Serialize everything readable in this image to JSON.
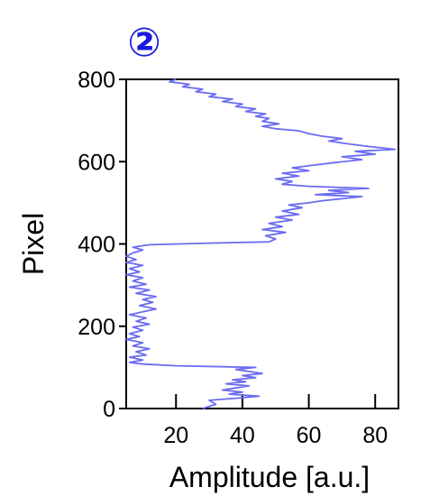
{
  "panel_badge": {
    "label": "②",
    "color": "#1a1adf"
  },
  "chart_data": {
    "type": "line",
    "title": "",
    "xlabel": "Amplitude [a.u.]",
    "ylabel": "Pixel",
    "xlim": [
      5,
      87
    ],
    "ylim": [
      0,
      800
    ],
    "x_ticks": [
      20,
      40,
      60,
      80
    ],
    "x_tick_labels": [
      "20",
      "40",
      "60",
      "80"
    ],
    "y_ticks": [
      0,
      200,
      400,
      600,
      800
    ],
    "y_tick_labels": [
      "0",
      "200",
      "400",
      "600",
      "800"
    ],
    "grid": false,
    "legend": "none",
    "series_color": "#6b6bf0",
    "series": [
      {
        "points": [
          [
            28,
            0
          ],
          [
            32,
            10
          ],
          [
            30,
            20
          ],
          [
            38,
            25
          ],
          [
            45,
            30
          ],
          [
            36,
            35
          ],
          [
            40,
            40
          ],
          [
            34,
            45
          ],
          [
            38,
            50
          ],
          [
            42,
            55
          ],
          [
            35,
            60
          ],
          [
            41,
            65
          ],
          [
            37,
            70
          ],
          [
            44,
            75
          ],
          [
            40,
            80
          ],
          [
            46,
            85
          ],
          [
            42,
            90
          ],
          [
            38,
            95
          ],
          [
            44,
            100
          ],
          [
            20,
            104
          ],
          [
            10,
            108
          ],
          [
            6,
            112
          ],
          [
            10,
            118
          ],
          [
            6,
            125
          ],
          [
            11,
            130
          ],
          [
            8,
            138
          ],
          [
            12,
            145
          ],
          [
            7,
            152
          ],
          [
            10,
            160
          ],
          [
            5,
            168
          ],
          [
            9,
            175
          ],
          [
            6,
            182
          ],
          [
            10,
            190
          ],
          [
            7,
            198
          ],
          [
            12,
            205
          ],
          [
            8,
            212
          ],
          [
            11,
            220
          ],
          [
            6,
            228
          ],
          [
            10,
            235
          ],
          [
            14,
            242
          ],
          [
            9,
            250
          ],
          [
            13,
            258
          ],
          [
            10,
            265
          ],
          [
            14,
            272
          ],
          [
            8,
            280
          ],
          [
            12,
            288
          ],
          [
            6,
            295
          ],
          [
            11,
            302
          ],
          [
            7,
            310
          ],
          [
            10,
            318
          ],
          [
            5,
            325
          ],
          [
            9,
            332
          ],
          [
            6,
            340
          ],
          [
            10,
            348
          ],
          [
            5,
            355
          ],
          [
            8,
            362
          ],
          [
            5,
            370
          ],
          [
            7,
            378
          ],
          [
            10,
            385
          ],
          [
            7,
            392
          ],
          [
            12,
            398
          ],
          [
            30,
            402
          ],
          [
            48,
            405
          ],
          [
            50,
            412
          ],
          [
            47,
            420
          ],
          [
            53,
            428
          ],
          [
            46,
            435
          ],
          [
            52,
            442
          ],
          [
            48,
            450
          ],
          [
            55,
            458
          ],
          [
            50,
            465
          ],
          [
            57,
            472
          ],
          [
            52,
            480
          ],
          [
            58,
            488
          ],
          [
            54,
            495
          ],
          [
            60,
            500
          ],
          [
            64,
            505
          ],
          [
            70,
            510
          ],
          [
            76,
            515
          ],
          [
            62,
            520
          ],
          [
            72,
            525
          ],
          [
            66,
            530
          ],
          [
            78,
            535
          ],
          [
            60,
            540
          ],
          [
            52,
            545
          ],
          [
            55,
            552
          ],
          [
            50,
            558
          ],
          [
            57,
            565
          ],
          [
            52,
            572
          ],
          [
            60,
            578
          ],
          [
            55,
            585
          ],
          [
            62,
            592
          ],
          [
            68,
            598
          ],
          [
            76,
            605
          ],
          [
            70,
            612
          ],
          [
            80,
            618
          ],
          [
            74,
            625
          ],
          [
            86,
            630
          ],
          [
            78,
            637
          ],
          [
            72,
            643
          ],
          [
            66,
            650
          ],
          [
            70,
            656
          ],
          [
            64,
            662
          ],
          [
            60,
            668
          ],
          [
            57,
            675
          ],
          [
            50,
            680
          ],
          [
            46,
            686
          ],
          [
            51,
            692
          ],
          [
            46,
            698
          ],
          [
            48,
            705
          ],
          [
            44,
            710
          ],
          [
            47,
            716
          ],
          [
            41,
            722
          ],
          [
            44,
            728
          ],
          [
            38,
            734
          ],
          [
            40,
            740
          ],
          [
            34,
            746
          ],
          [
            37,
            752
          ],
          [
            30,
            758
          ],
          [
            32,
            764
          ],
          [
            26,
            770
          ],
          [
            28,
            776
          ],
          [
            22,
            782
          ],
          [
            24,
            788
          ],
          [
            18,
            794
          ],
          [
            20,
            800
          ]
        ]
      }
    ]
  }
}
